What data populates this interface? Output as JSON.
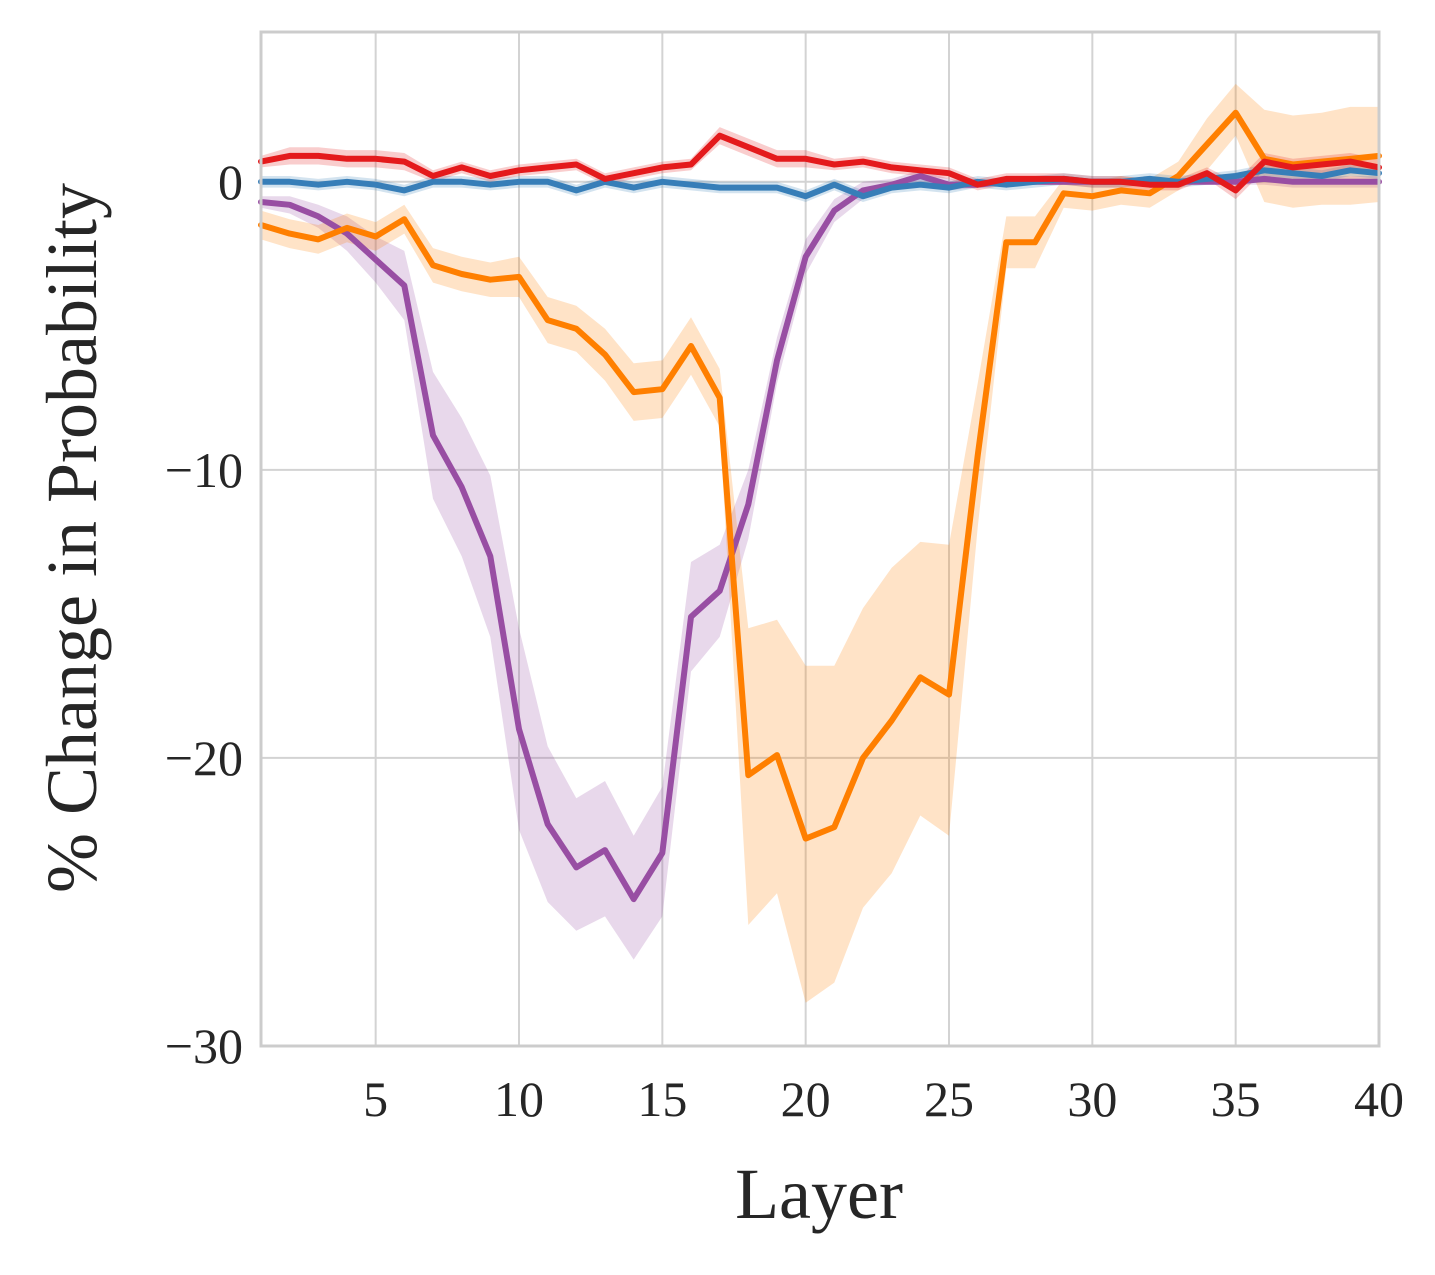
{
  "chart_data": {
    "type": "line",
    "xlabel": "Layer",
    "ylabel": "% Change in Probability",
    "xlim": [
      1,
      40
    ],
    "ylim": [
      -30,
      5.2
    ],
    "xticks": [
      5,
      10,
      15,
      20,
      25,
      30,
      35,
      40
    ],
    "yticks": [
      0,
      -10,
      -20,
      -30
    ],
    "ytick_labels": [
      "0",
      "−10",
      "−20",
      "−30"
    ],
    "grid": true,
    "legend": "none",
    "x": [
      1,
      2,
      3,
      4,
      5,
      6,
      7,
      8,
      9,
      10,
      11,
      12,
      13,
      14,
      15,
      16,
      17,
      18,
      19,
      20,
      21,
      22,
      23,
      24,
      25,
      26,
      27,
      28,
      29,
      30,
      31,
      32,
      33,
      34,
      35,
      36,
      37,
      38,
      39,
      40
    ],
    "series": [
      {
        "color": "#984ea3",
        "values": [
          -0.7,
          -0.8,
          -1.2,
          -1.8,
          -2.7,
          -3.6,
          -8.8,
          -10.6,
          -13.0,
          -19.0,
          -22.3,
          -23.8,
          -23.2,
          -24.9,
          -23.3,
          -15.1,
          -14.2,
          -11.2,
          -6.2,
          -2.6,
          -1.0,
          -0.3,
          -0.1,
          0.2,
          -0.1,
          -0.1,
          0.0,
          0.0,
          0.0,
          0.0,
          0.0,
          0.0,
          0.0,
          0.0,
          0.0,
          0.1,
          0.0,
          0.0,
          0.0,
          0.0
        ],
        "lower": [
          -0.9,
          -1.1,
          -1.6,
          -2.4,
          -3.5,
          -4.8,
          -11.0,
          -13.0,
          -15.8,
          -22.5,
          -25.0,
          -26.0,
          -25.5,
          -27.0,
          -25.5,
          -17.0,
          -15.8,
          -12.4,
          -7.0,
          -3.2,
          -1.4,
          -0.6,
          -0.3,
          0.0,
          -0.3,
          -0.2,
          -0.1,
          -0.1,
          -0.1,
          -0.1,
          -0.1,
          -0.1,
          -0.1,
          -0.1,
          -0.1,
          -0.1,
          -0.2,
          -0.2,
          -0.2,
          -0.2
        ],
        "upper": [
          -0.5,
          -0.5,
          -0.8,
          -1.2,
          -1.9,
          -2.4,
          -6.6,
          -8.2,
          -10.2,
          -15.5,
          -19.6,
          -21.4,
          -20.8,
          -22.7,
          -21.0,
          -13.2,
          -12.6,
          -10.0,
          -5.4,
          -2.0,
          -0.6,
          0.0,
          0.1,
          0.4,
          0.1,
          0.0,
          0.1,
          0.1,
          0.1,
          0.1,
          0.1,
          0.1,
          0.1,
          0.1,
          0.1,
          0.3,
          0.2,
          0.2,
          0.2,
          0.2
        ]
      },
      {
        "color": "#ff7f00",
        "values": [
          -1.5,
          -1.8,
          -2.0,
          -1.6,
          -1.9,
          -1.3,
          -2.9,
          -3.2,
          -3.4,
          -3.3,
          -4.8,
          -5.1,
          -6.0,
          -7.3,
          -7.2,
          -5.7,
          -7.5,
          -20.6,
          -19.9,
          -22.8,
          -22.4,
          -20.0,
          -18.7,
          -17.2,
          -17.8,
          -9.5,
          -2.1,
          -2.1,
          -0.4,
          -0.5,
          -0.3,
          -0.4,
          0.2,
          1.3,
          2.4,
          0.8,
          0.6,
          0.7,
          0.8,
          0.9
        ],
        "lower": [
          -2.0,
          -2.3,
          -2.5,
          -2.1,
          -2.4,
          -1.8,
          -3.5,
          -3.8,
          -4.0,
          -4.0,
          -5.6,
          -5.9,
          -6.9,
          -8.3,
          -8.2,
          -6.7,
          -8.5,
          -25.8,
          -24.7,
          -28.5,
          -27.8,
          -25.2,
          -24.0,
          -22.0,
          -22.7,
          -12.0,
          -3.0,
          -3.0,
          -0.9,
          -1.0,
          -0.8,
          -0.9,
          -0.3,
          0.4,
          1.6,
          -0.7,
          -0.9,
          -0.8,
          -0.8,
          -0.7
        ],
        "upper": [
          -1.0,
          -1.3,
          -1.5,
          -1.1,
          -1.4,
          -0.8,
          -2.3,
          -2.6,
          -2.8,
          -2.6,
          -4.0,
          -4.3,
          -5.1,
          -6.3,
          -6.2,
          -4.7,
          -6.5,
          -15.5,
          -15.2,
          -16.8,
          -16.8,
          -14.8,
          -13.4,
          -12.5,
          -12.6,
          -7.0,
          -1.2,
          -1.2,
          0.1,
          0.0,
          0.2,
          0.1,
          0.7,
          2.2,
          3.4,
          2.5,
          2.3,
          2.4,
          2.6,
          2.6
        ]
      },
      {
        "color": "#377eb8",
        "values": [
          0.0,
          0.0,
          -0.1,
          0.0,
          -0.1,
          -0.3,
          0.0,
          0.0,
          -0.1,
          0.0,
          0.0,
          -0.3,
          0.0,
          -0.2,
          0.0,
          -0.1,
          -0.2,
          -0.2,
          -0.2,
          -0.5,
          -0.1,
          -0.5,
          -0.2,
          -0.1,
          -0.2,
          0.0,
          -0.1,
          0.0,
          0.1,
          0.0,
          0.0,
          0.1,
          0.0,
          0.1,
          0.2,
          0.4,
          0.3,
          0.2,
          0.4,
          0.3
        ],
        "lower": [
          -0.2,
          -0.2,
          -0.3,
          -0.2,
          -0.3,
          -0.5,
          -0.2,
          -0.2,
          -0.3,
          -0.2,
          -0.2,
          -0.5,
          -0.2,
          -0.4,
          -0.2,
          -0.3,
          -0.4,
          -0.4,
          -0.4,
          -0.7,
          -0.3,
          -0.7,
          -0.4,
          -0.3,
          -0.4,
          -0.2,
          -0.3,
          -0.2,
          -0.1,
          -0.2,
          -0.2,
          -0.1,
          -0.2,
          -0.1,
          0.0,
          0.2,
          0.1,
          0.0,
          0.2,
          0.1
        ],
        "upper": [
          0.2,
          0.2,
          0.1,
          0.2,
          0.1,
          -0.1,
          0.2,
          0.2,
          0.1,
          0.2,
          0.2,
          -0.1,
          0.2,
          0.0,
          0.2,
          0.1,
          0.0,
          0.0,
          0.0,
          -0.3,
          0.1,
          -0.3,
          0.0,
          0.1,
          0.0,
          0.2,
          0.1,
          0.2,
          0.3,
          0.2,
          0.2,
          0.3,
          0.2,
          0.3,
          0.4,
          0.6,
          0.5,
          0.4,
          0.6,
          0.5
        ]
      },
      {
        "color": "#e41a1c",
        "values": [
          0.7,
          0.9,
          0.9,
          0.8,
          0.8,
          0.7,
          0.2,
          0.5,
          0.2,
          0.4,
          0.5,
          0.6,
          0.1,
          0.3,
          0.5,
          0.6,
          1.6,
          1.2,
          0.8,
          0.8,
          0.6,
          0.7,
          0.5,
          0.4,
          0.3,
          -0.1,
          0.1,
          0.1,
          0.1,
          0.0,
          0.0,
          -0.1,
          -0.1,
          0.3,
          -0.3,
          0.7,
          0.5,
          0.6,
          0.7,
          0.5
        ],
        "lower": [
          0.5,
          0.6,
          0.6,
          0.5,
          0.5,
          0.4,
          0.0,
          0.3,
          0.0,
          0.2,
          0.3,
          0.4,
          -0.1,
          0.1,
          0.3,
          0.4,
          1.3,
          0.9,
          0.5,
          0.5,
          0.4,
          0.5,
          0.3,
          0.2,
          0.1,
          -0.3,
          -0.1,
          -0.1,
          -0.1,
          -0.2,
          -0.2,
          -0.3,
          -0.3,
          0.1,
          -0.6,
          0.4,
          0.2,
          0.3,
          0.4,
          0.2
        ],
        "upper": [
          0.9,
          1.2,
          1.2,
          1.1,
          1.1,
          1.0,
          0.4,
          0.7,
          0.4,
          0.6,
          0.7,
          0.8,
          0.3,
          0.5,
          0.7,
          0.8,
          1.9,
          1.5,
          1.1,
          1.1,
          0.8,
          0.9,
          0.7,
          0.6,
          0.5,
          0.1,
          0.3,
          0.3,
          0.3,
          0.2,
          0.2,
          0.1,
          0.1,
          0.5,
          0.0,
          1.0,
          0.8,
          0.9,
          1.0,
          0.8
        ]
      }
    ]
  }
}
